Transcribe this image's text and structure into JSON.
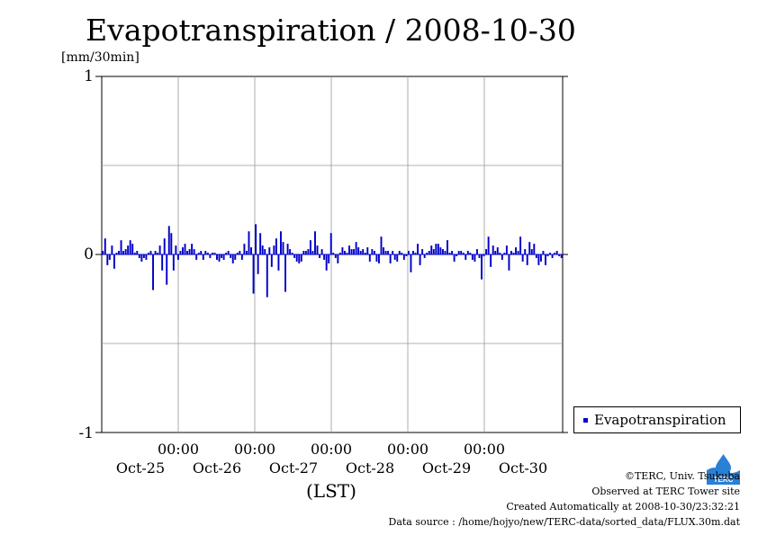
{
  "title": "Evapotranspiration / 2008-10-30",
  "y_unit": "[mm/30min]",
  "y_ticks": [
    "1",
    "0",
    "-1"
  ],
  "x_time_ticks": [
    "00:00",
    "00:00",
    "00:00",
    "00:00",
    "00:00"
  ],
  "x_date_ticks": [
    "Oct-25",
    "Oct-26",
    "Oct-27",
    "Oct-28",
    "Oct-29",
    "Oct-30"
  ],
  "x_axis_label": "(LST)",
  "legend": {
    "label": "Evapotranspiration",
    "color": "#0000c8"
  },
  "credits": {
    "copyright": "©TERC, Univ. Tsukuba",
    "observed": "Observed at TERC Tower site",
    "created": "Created Automatically at 2008-10-30/23:32:21",
    "source": "Data source : /home/hojyo/new/TERC-data/sorted_data/FLUX.30m.dat"
  },
  "logo": {
    "text": "TERC",
    "color": "#2a7fd6"
  },
  "chart_data": {
    "type": "bar",
    "title": "Evapotranspiration / 2008-10-30",
    "ylabel": "[mm/30min]",
    "xlabel": "(LST)",
    "ylim": [
      -1,
      1
    ],
    "x_start": "2008-10-24 15:00",
    "interval_minutes": 30,
    "grid": true,
    "legend_position": "right",
    "series": [
      {
        "name": "Evapotranspiration",
        "color": "#0000c8",
        "values": [
          0.02,
          0.09,
          -0.06,
          -0.03,
          0.05,
          -0.08,
          0.01,
          0.02,
          0.08,
          0.02,
          0.03,
          0.05,
          0.08,
          0.06,
          0.01,
          0.02,
          -0.02,
          -0.04,
          -0.02,
          -0.03,
          0.01,
          0.02,
          -0.2,
          0.02,
          0.01,
          0.05,
          -0.09,
          0.09,
          -0.17,
          0.16,
          0.12,
          -0.09,
          0.05,
          -0.03,
          0.02,
          0.04,
          0.06,
          0.02,
          0.03,
          0.06,
          0.03,
          -0.03,
          0.01,
          0.02,
          -0.03,
          0.02,
          0.01,
          -0.02,
          0.01,
          0.01,
          -0.03,
          -0.04,
          -0.02,
          -0.03,
          0.01,
          0.02,
          -0.02,
          -0.05,
          -0.03,
          0.01,
          0.02,
          -0.03,
          0.06,
          0.02,
          0.13,
          0.04,
          -0.22,
          0.17,
          -0.11,
          0.12,
          0.05,
          0.03,
          -0.24,
          0.04,
          -0.07,
          0.05,
          0.09,
          -0.09,
          0.13,
          0.07,
          -0.21,
          0.06,
          0.03,
          0.01,
          -0.02,
          -0.04,
          -0.05,
          -0.04,
          0.02,
          0.02,
          0.03,
          0.08,
          0.02,
          0.13,
          0.05,
          -0.02,
          0.03,
          -0.03,
          -0.09,
          -0.05,
          0.12,
          0.01,
          -0.02,
          -0.05,
          0.01,
          0.04,
          0.02,
          0.01,
          0.05,
          0.03,
          0.03,
          0.07,
          0.04,
          0.02,
          0.03,
          0.01,
          0.04,
          -0.04,
          0.03,
          0.02,
          -0.04,
          -0.05,
          0.1,
          0.04,
          0.02,
          0.02,
          -0.05,
          0.02,
          -0.03,
          -0.04,
          0.02,
          0.01,
          -0.03,
          -0.01,
          0.02,
          -0.1,
          0.02,
          0.01,
          0.06,
          -0.06,
          0.03,
          -0.02,
          0.01,
          0.02,
          0.05,
          0.03,
          0.06,
          0.06,
          0.04,
          0.03,
          0.02,
          0.08,
          0.01,
          0.02,
          -0.04,
          -0.01,
          0.02,
          0.02,
          0.01,
          -0.03,
          0.02,
          0.01,
          -0.03,
          -0.04,
          0.03,
          -0.02,
          -0.14,
          -0.01,
          0.03,
          0.1,
          -0.07,
          0.05,
          0.02,
          0.04,
          0.01,
          -0.03,
          0.01,
          0.05,
          -0.09,
          0.02,
          0.01,
          0.04,
          0.02,
          0.1,
          -0.04,
          0.03,
          -0.06,
          0.07,
          0.03,
          0.06,
          -0.02,
          -0.06,
          -0.04,
          0.02,
          -0.06,
          -0.01,
          0.01,
          -0.02,
          0.01,
          0.02,
          -0.01,
          -0.02
        ]
      }
    ]
  }
}
